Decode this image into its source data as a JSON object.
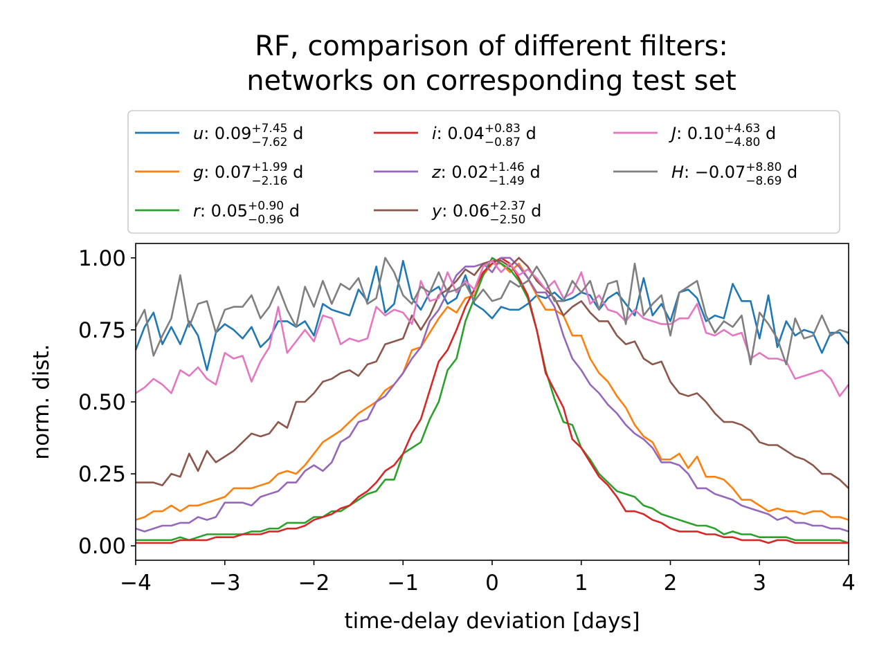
{
  "chart_data": {
    "type": "line",
    "title": [
      "RF, comparison of different filters:",
      "networks on corresponding test set"
    ],
    "xlabel": "time-delay deviation [days]",
    "ylabel": "norm. dist.",
    "xlim": [
      -4,
      4
    ],
    "ylim": [
      -0.05,
      1.05
    ],
    "xticks": [
      -4,
      -3,
      -2,
      -1,
      0,
      1,
      2,
      3,
      4
    ],
    "xtick_labels": [
      "−4",
      "−3",
      "−2",
      "−1",
      "0",
      "1",
      "2",
      "3",
      "4"
    ],
    "yticks": [
      0.0,
      0.25,
      0.5,
      0.75,
      1.0
    ],
    "ytick_labels": [
      "0.00",
      "0.25",
      "0.50",
      "0.75",
      "1.00"
    ],
    "grid": false,
    "legend_position": "above plot, 3 columns",
    "x": [
      -4.0,
      -3.9,
      -3.8,
      -3.7,
      -3.6,
      -3.5,
      -3.4,
      -3.3,
      -3.2,
      -3.1,
      -3.0,
      -2.9,
      -2.8,
      -2.7,
      -2.6,
      -2.5,
      -2.4,
      -2.3,
      -2.2,
      -2.1,
      -2.0,
      -1.9,
      -1.8,
      -1.7,
      -1.6,
      -1.5,
      -1.4,
      -1.3,
      -1.2,
      -1.1,
      -1.0,
      -0.9,
      -0.8,
      -0.7,
      -0.6,
      -0.5,
      -0.4,
      -0.3,
      -0.2,
      -0.1,
      0.0,
      0.1,
      0.2,
      0.3,
      0.4,
      0.5,
      0.6,
      0.7,
      0.8,
      0.9,
      1.0,
      1.1,
      1.2,
      1.3,
      1.4,
      1.5,
      1.6,
      1.7,
      1.8,
      1.9,
      2.0,
      2.1,
      2.2,
      2.3,
      2.4,
      2.5,
      2.6,
      2.7,
      2.8,
      2.9,
      3.0,
      3.1,
      3.2,
      3.3,
      3.4,
      3.5,
      3.6,
      3.7,
      3.8,
      3.9,
      4.0
    ],
    "series": [
      {
        "name": "u",
        "median": "0.09",
        "plus": "+7.45",
        "minus": "−7.62",
        "color": "#1f77b4",
        "values": [
          0.68,
          0.76,
          0.81,
          0.7,
          0.76,
          0.7,
          0.78,
          0.73,
          0.61,
          0.74,
          0.77,
          0.75,
          0.72,
          0.76,
          0.69,
          0.72,
          0.78,
          0.78,
          0.76,
          0.78,
          0.73,
          0.84,
          0.82,
          0.81,
          0.8,
          0.89,
          0.85,
          0.97,
          0.81,
          0.84,
          0.99,
          0.86,
          0.82,
          0.88,
          0.9,
          0.84,
          0.86,
          0.94,
          0.84,
          0.82,
          0.79,
          0.83,
          0.82,
          0.82,
          0.84,
          0.87,
          0.86,
          0.88,
          0.85,
          0.86,
          0.88,
          0.87,
          0.82,
          0.86,
          0.88,
          0.84,
          0.8,
          0.93,
          0.8,
          0.84,
          0.78,
          0.88,
          0.89,
          0.86,
          0.78,
          0.8,
          0.79,
          0.91,
          0.85,
          0.85,
          0.72,
          0.87,
          0.69,
          0.78,
          0.73,
          0.75,
          0.74,
          0.67,
          0.74,
          0.74,
          0.7
        ]
      },
      {
        "name": "g",
        "median": "0.07",
        "plus": "+1.99",
        "minus": "−2.16",
        "color": "#ff7f0e",
        "values": [
          0.09,
          0.1,
          0.12,
          0.12,
          0.14,
          0.12,
          0.14,
          0.14,
          0.15,
          0.16,
          0.17,
          0.2,
          0.2,
          0.2,
          0.21,
          0.22,
          0.25,
          0.26,
          0.25,
          0.28,
          0.32,
          0.36,
          0.38,
          0.4,
          0.43,
          0.46,
          0.48,
          0.5,
          0.54,
          0.56,
          0.6,
          0.68,
          0.69,
          0.74,
          0.79,
          0.83,
          0.81,
          0.86,
          0.87,
          0.94,
          0.98,
          0.98,
          0.95,
          0.98,
          0.93,
          0.87,
          0.82,
          0.82,
          0.8,
          0.73,
          0.73,
          0.65,
          0.6,
          0.57,
          0.52,
          0.48,
          0.42,
          0.38,
          0.36,
          0.3,
          0.3,
          0.32,
          0.27,
          0.31,
          0.24,
          0.24,
          0.23,
          0.2,
          0.16,
          0.16,
          0.14,
          0.12,
          0.13,
          0.12,
          0.12,
          0.11,
          0.12,
          0.12,
          0.1,
          0.1,
          0.09
        ]
      },
      {
        "name": "r",
        "median": "0.05",
        "plus": "+0.90",
        "minus": "−0.96",
        "color": "#2ca02c",
        "values": [
          0.02,
          0.02,
          0.02,
          0.02,
          0.02,
          0.03,
          0.02,
          0.03,
          0.04,
          0.04,
          0.04,
          0.04,
          0.04,
          0.05,
          0.05,
          0.06,
          0.06,
          0.08,
          0.08,
          0.08,
          0.1,
          0.1,
          0.12,
          0.12,
          0.14,
          0.16,
          0.18,
          0.19,
          0.23,
          0.23,
          0.32,
          0.34,
          0.36,
          0.44,
          0.5,
          0.61,
          0.65,
          0.78,
          0.86,
          0.94,
          1.0,
          0.98,
          0.96,
          0.92,
          0.86,
          0.75,
          0.61,
          0.51,
          0.43,
          0.42,
          0.34,
          0.3,
          0.25,
          0.22,
          0.19,
          0.18,
          0.17,
          0.14,
          0.13,
          0.11,
          0.1,
          0.09,
          0.08,
          0.07,
          0.07,
          0.06,
          0.04,
          0.05,
          0.04,
          0.04,
          0.03,
          0.03,
          0.03,
          0.03,
          0.02,
          0.02,
          0.02,
          0.02,
          0.02,
          0.02,
          0.01
        ]
      },
      {
        "name": "i",
        "median": "0.04",
        "plus": "+0.83",
        "minus": "−0.87",
        "color": "#d62728",
        "values": [
          0.01,
          0.01,
          0.01,
          0.01,
          0.01,
          0.02,
          0.02,
          0.02,
          0.02,
          0.03,
          0.03,
          0.03,
          0.04,
          0.04,
          0.04,
          0.05,
          0.05,
          0.06,
          0.06,
          0.07,
          0.09,
          0.1,
          0.11,
          0.13,
          0.14,
          0.17,
          0.19,
          0.22,
          0.26,
          0.28,
          0.32,
          0.39,
          0.44,
          0.54,
          0.64,
          0.68,
          0.75,
          0.83,
          0.89,
          0.95,
          0.98,
          1.0,
          0.98,
          0.93,
          0.87,
          0.75,
          0.6,
          0.54,
          0.48,
          0.37,
          0.34,
          0.29,
          0.24,
          0.21,
          0.17,
          0.12,
          0.12,
          0.11,
          0.09,
          0.08,
          0.06,
          0.05,
          0.05,
          0.05,
          0.04,
          0.04,
          0.03,
          0.03,
          0.02,
          0.02,
          0.02,
          0.01,
          0.02,
          0.02,
          0.01,
          0.01,
          0.01,
          0.01,
          0.01,
          0.01,
          0.01
        ]
      },
      {
        "name": "z",
        "median": "0.02",
        "plus": "+1.46",
        "minus": "−1.49",
        "color": "#9467bd",
        "values": [
          0.06,
          0.05,
          0.06,
          0.07,
          0.07,
          0.08,
          0.08,
          0.1,
          0.09,
          0.1,
          0.15,
          0.15,
          0.15,
          0.14,
          0.17,
          0.18,
          0.19,
          0.22,
          0.22,
          0.26,
          0.28,
          0.26,
          0.29,
          0.36,
          0.38,
          0.43,
          0.44,
          0.5,
          0.52,
          0.56,
          0.6,
          0.65,
          0.69,
          0.78,
          0.82,
          0.88,
          0.94,
          0.97,
          0.97,
          0.98,
          0.95,
          1.0,
          1.0,
          0.97,
          0.93,
          0.88,
          0.88,
          0.83,
          0.73,
          0.65,
          0.61,
          0.56,
          0.53,
          0.49,
          0.46,
          0.42,
          0.39,
          0.37,
          0.34,
          0.29,
          0.29,
          0.28,
          0.25,
          0.2,
          0.2,
          0.18,
          0.17,
          0.16,
          0.14,
          0.13,
          0.12,
          0.11,
          0.09,
          0.1,
          0.08,
          0.08,
          0.07,
          0.07,
          0.06,
          0.06,
          0.05
        ]
      },
      {
        "name": "y",
        "median": "0.06",
        "plus": "+2.37",
        "minus": "−2.50",
        "color": "#8c564b",
        "values": [
          0.22,
          0.22,
          0.22,
          0.21,
          0.25,
          0.24,
          0.32,
          0.26,
          0.33,
          0.29,
          0.31,
          0.33,
          0.36,
          0.39,
          0.38,
          0.39,
          0.43,
          0.41,
          0.5,
          0.5,
          0.53,
          0.57,
          0.58,
          0.6,
          0.61,
          0.59,
          0.63,
          0.64,
          0.7,
          0.71,
          0.72,
          0.8,
          0.75,
          0.8,
          0.87,
          0.89,
          0.92,
          0.96,
          0.94,
          0.98,
          0.99,
          0.99,
          0.97,
          1.0,
          0.97,
          0.92,
          0.89,
          0.86,
          0.8,
          0.83,
          0.85,
          0.81,
          0.78,
          0.78,
          0.73,
          0.7,
          0.71,
          0.65,
          0.63,
          0.64,
          0.57,
          0.53,
          0.52,
          0.53,
          0.5,
          0.46,
          0.43,
          0.43,
          0.42,
          0.4,
          0.36,
          0.35,
          0.35,
          0.33,
          0.31,
          0.3,
          0.28,
          0.25,
          0.25,
          0.23,
          0.2
        ]
      },
      {
        "name": "J",
        "median": "0.10",
        "plus": "+4.63",
        "minus": "−4.80",
        "color": "#e377c2",
        "values": [
          0.53,
          0.55,
          0.58,
          0.56,
          0.53,
          0.61,
          0.59,
          0.62,
          0.58,
          0.56,
          0.67,
          0.65,
          0.66,
          0.57,
          0.64,
          0.69,
          0.83,
          0.67,
          0.71,
          0.75,
          0.71,
          0.8,
          0.79,
          0.7,
          0.72,
          0.71,
          0.72,
          0.83,
          0.8,
          0.82,
          0.81,
          0.77,
          0.92,
          0.85,
          0.86,
          0.95,
          0.88,
          0.92,
          0.89,
          0.97,
          0.99,
          0.95,
          0.98,
          0.94,
          0.96,
          0.93,
          0.89,
          0.92,
          0.86,
          0.88,
          0.95,
          0.84,
          0.87,
          0.82,
          0.81,
          0.78,
          0.82,
          0.79,
          0.78,
          0.77,
          0.77,
          0.79,
          0.79,
          0.84,
          0.74,
          0.73,
          0.75,
          0.73,
          0.74,
          0.65,
          0.67,
          0.65,
          0.65,
          0.64,
          0.58,
          0.59,
          0.6,
          0.61,
          0.58,
          0.52,
          0.56
        ]
      },
      {
        "name": "H",
        "median": "−0.07",
        "plus": "+8.80",
        "minus": "−8.69",
        "color": "#7f7f7f",
        "values": [
          0.76,
          0.82,
          0.66,
          0.73,
          0.79,
          0.94,
          0.76,
          0.84,
          0.85,
          0.74,
          0.82,
          0.83,
          0.83,
          0.87,
          0.79,
          0.83,
          0.9,
          0.82,
          0.76,
          0.9,
          0.83,
          0.92,
          0.84,
          0.91,
          0.89,
          0.93,
          0.84,
          0.86,
          1.0,
          0.95,
          0.87,
          0.84,
          0.9,
          0.88,
          0.95,
          0.88,
          0.89,
          0.91,
          0.85,
          0.89,
          0.85,
          0.86,
          0.92,
          0.9,
          0.92,
          0.97,
          0.92,
          0.85,
          0.85,
          0.92,
          0.88,
          0.92,
          0.82,
          0.91,
          0.92,
          0.77,
          0.98,
          0.8,
          0.84,
          0.87,
          0.73,
          0.88,
          0.9,
          0.92,
          0.8,
          0.74,
          0.78,
          0.76,
          0.8,
          0.63,
          0.81,
          0.77,
          0.72,
          0.63,
          0.79,
          0.72,
          0.73,
          0.8,
          0.73,
          0.75,
          0.74
        ]
      }
    ]
  }
}
